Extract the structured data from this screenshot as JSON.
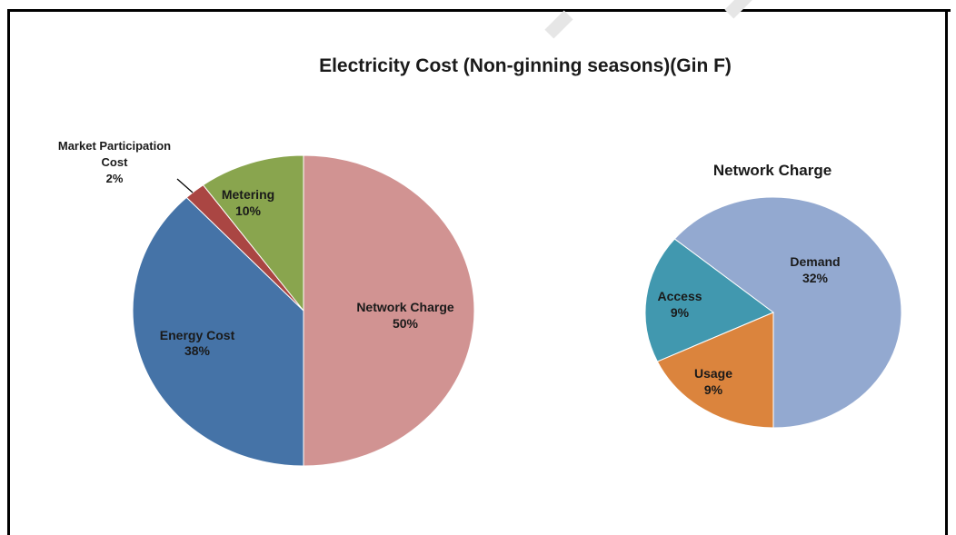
{
  "chart_data": [
    {
      "type": "pie",
      "title": "Electricity Cost (Non-ginning seasons)(Gin F)",
      "slices": [
        {
          "name": "Network Charge",
          "label": "Network Charge",
          "pct_label": "50%",
          "value": 50,
          "color": "#d19392"
        },
        {
          "name": "Energy Cost",
          "label": "Energy Cost",
          "pct_label": "38%",
          "value": 38,
          "color": "#4573a7"
        },
        {
          "name": "Market Participation Cost",
          "label_lines": [
            "Market Participation",
            "Cost"
          ],
          "pct_label": "2%",
          "value": 2,
          "color": "#aa4643"
        },
        {
          "name": "Metering",
          "label": "Metering",
          "pct_label": "10%",
          "value": 10,
          "color": "#89a54e"
        }
      ]
    },
    {
      "type": "pie",
      "title": "Network Charge",
      "slices": [
        {
          "name": "Demand",
          "label": "Demand",
          "pct_label": "32%",
          "value": 32,
          "color": "#93a9d0"
        },
        {
          "name": "Usage",
          "label": "Usage",
          "pct_label": "9%",
          "value": 9,
          "color": "#4198af"
        },
        {
          "name": "Access",
          "label": "Access",
          "pct_label": "9%",
          "value": 9,
          "color": "#db843d"
        }
      ]
    }
  ]
}
